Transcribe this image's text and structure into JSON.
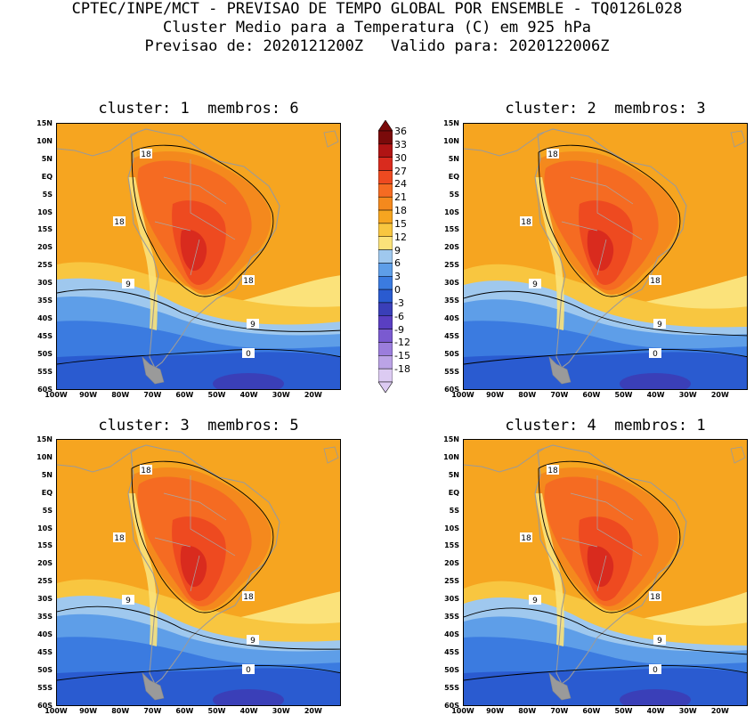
{
  "header": {
    "line1": "CPTEC/INPE/MCT - PREVISAO DE TEMPO GLOBAL POR ENSEMBLE - TQ0126L028",
    "line2": "Cluster Medio para a Temperatura (C) em 925 hPa",
    "line3": "Previsao de: 2020121200Z   Valido para: 2020122006Z"
  },
  "panels": [
    {
      "title": "cluster: 1  membros: 6"
    },
    {
      "title": "cluster: 2  membros: 3"
    },
    {
      "title": "cluster: 3  membros: 5"
    },
    {
      "title": "cluster: 4  membros: 1"
    }
  ],
  "axes": {
    "lat_ticks": [
      "15N",
      "10N",
      "5N",
      "EQ",
      "5S",
      "10S",
      "15S",
      "20S",
      "25S",
      "30S",
      "35S",
      "40S",
      "45S",
      "50S",
      "55S",
      "60S"
    ],
    "lon_ticks": [
      "100W",
      "90W",
      "80W",
      "70W",
      "60W",
      "50W",
      "40W",
      "30W",
      "20W"
    ]
  },
  "colorbar": {
    "levels": [
      "36",
      "33",
      "30",
      "27",
      "24",
      "21",
      "18",
      "15",
      "12",
      "9",
      "6",
      "3",
      "0",
      "-3",
      "-6",
      "-9",
      "-12",
      "-15",
      "-18"
    ],
    "colors": [
      "#7a0a0a",
      "#b01414",
      "#d92b1e",
      "#ee4a20",
      "#f56b22",
      "#f4891d",
      "#f6a520",
      "#f8c640",
      "#fbe27a",
      "#9fc8ee",
      "#5e9ee8",
      "#3b7be0",
      "#2a5bd0",
      "#3a3fb8",
      "#5a3fc2",
      "#7a5ad0",
      "#9b7ddc",
      "#bba3e6",
      "#dccbf2"
    ]
  },
  "contour_labels": [
    "18",
    "18",
    "18",
    "9",
    "9",
    "0",
    "0",
    "18",
    "18",
    "18",
    "9",
    "9",
    "0",
    "18",
    "18",
    "18",
    "9",
    "9",
    "18",
    "18",
    "18",
    "9",
    "9"
  ]
}
